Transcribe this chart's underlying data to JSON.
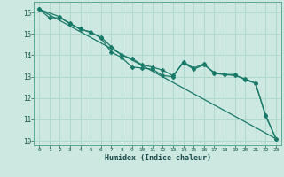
{
  "title": "",
  "xlabel": "Humidex (Indice chaleur)",
  "ylabel": "",
  "background_color": "#cce8e0",
  "grid_color": "#b0d8cc",
  "line_color": "#1a7a6a",
  "xlim": [
    -0.5,
    23.5
  ],
  "ylim": [
    9.8,
    16.5
  ],
  "xticks": [
    0,
    1,
    2,
    3,
    4,
    5,
    6,
    7,
    8,
    9,
    10,
    11,
    12,
    13,
    14,
    15,
    16,
    17,
    18,
    19,
    20,
    21,
    22,
    23
  ],
  "yticks": [
    10,
    11,
    12,
    13,
    14,
    15,
    16
  ],
  "line1": {
    "x": [
      0,
      1,
      2,
      3,
      4,
      5,
      6,
      7,
      8,
      9,
      10,
      11,
      12,
      13,
      14,
      15,
      16,
      17,
      18,
      19,
      20,
      21,
      22,
      23
    ],
    "y": [
      16.15,
      15.75,
      15.75,
      15.5,
      15.2,
      15.1,
      14.8,
      14.15,
      13.9,
      13.45,
      13.4,
      13.35,
      13.05,
      13.0,
      13.7,
      13.4,
      13.6,
      13.15,
      13.1,
      13.1,
      12.85,
      12.7,
      11.2,
      10.1
    ]
  },
  "line2": {
    "x": [
      0,
      2,
      3,
      4,
      5,
      6,
      7,
      8,
      9,
      10,
      11,
      12,
      13,
      14,
      15,
      16,
      17,
      18,
      19,
      20,
      21,
      22,
      23
    ],
    "y": [
      16.15,
      15.8,
      15.45,
      15.25,
      15.05,
      14.85,
      14.4,
      14.0,
      13.85,
      13.55,
      13.45,
      13.3,
      13.05,
      13.65,
      13.35,
      13.55,
      13.2,
      13.1,
      13.05,
      12.9,
      12.7,
      11.15,
      10.1
    ]
  },
  "line3": {
    "x": [
      0,
      23
    ],
    "y": [
      16.15,
      10.1
    ]
  }
}
